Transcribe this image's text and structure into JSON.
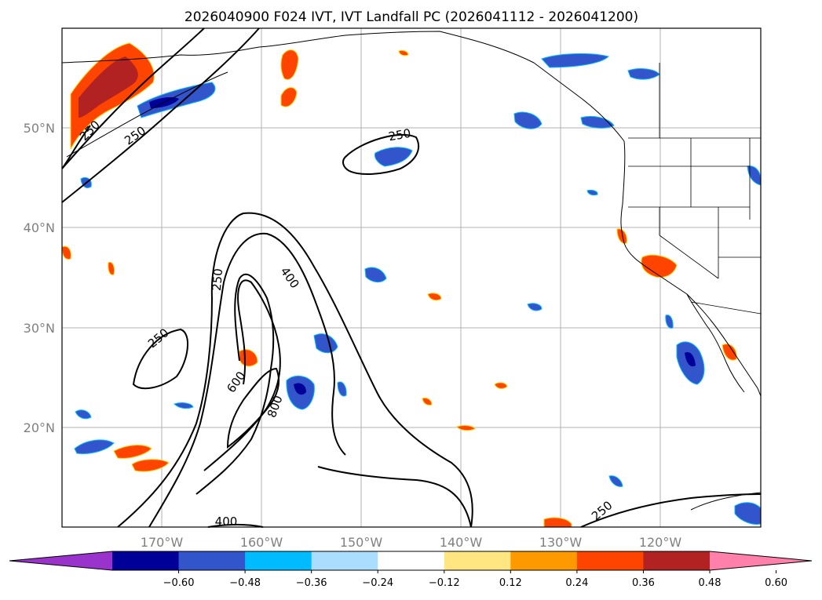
{
  "title": "2026040900 F024 IVT, IVT Landfall PC (2026041112 - 2026041200)",
  "map": {
    "lon_range": [
      -180,
      -110
    ],
    "lat_range": [
      10,
      60
    ],
    "lat_labels": [
      "50°N",
      "40°N",
      "30°N",
      "20°N"
    ],
    "lon_labels": [
      "170°W",
      "160°W",
      "150°W",
      "140°W",
      "130°W",
      "120°W"
    ],
    "contour_labels": [
      "250",
      "250",
      "250",
      "250",
      "400",
      "250",
      "600",
      "800",
      "400",
      "250"
    ]
  },
  "colorbar": {
    "ticks": [
      "−0.60",
      "−0.48",
      "−0.36",
      "−0.24",
      "−0.12",
      "0.12",
      "0.24",
      "0.36",
      "0.48",
      "0.60"
    ],
    "colors": [
      "#9933cc",
      "#000099",
      "#3355cc",
      "#00bbff",
      "#aaddff",
      "#ffffff",
      "#ffe680",
      "#ff9900",
      "#ff4400",
      "#b22222",
      "#ff80aa"
    ]
  }
}
